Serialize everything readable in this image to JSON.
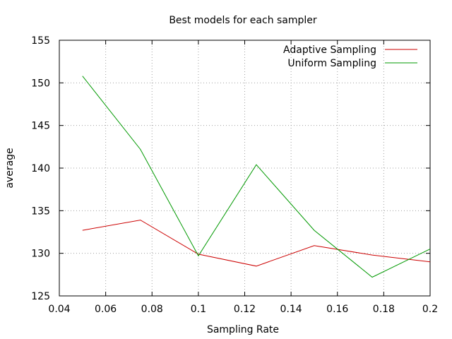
{
  "chart_data": {
    "type": "line",
    "title": "Best models for each sampler",
    "xlabel": "Sampling Rate",
    "ylabel": "average",
    "xlim": [
      0.04,
      0.2
    ],
    "ylim": [
      125,
      155
    ],
    "xticks": [
      "0.04",
      "0.06",
      "0.08",
      "0.1",
      "0.12",
      "0.14",
      "0.16",
      "0.18",
      "0.2"
    ],
    "yticks": [
      "125",
      "130",
      "135",
      "140",
      "145",
      "150",
      "155"
    ],
    "grid": true,
    "legend_position": "top-right",
    "x": [
      0.05,
      0.075,
      0.1,
      0.125,
      0.15,
      0.175,
      0.2
    ],
    "series": [
      {
        "name": "Adaptive Sampling",
        "color": "#cc0000",
        "values": [
          132.7,
          133.9,
          129.9,
          128.5,
          130.9,
          129.8,
          129.0
        ]
      },
      {
        "name": "Uniform Sampling",
        "color": "#009900",
        "values": [
          150.8,
          142.2,
          129.7,
          140.4,
          132.7,
          127.2,
          130.5
        ]
      }
    ]
  }
}
